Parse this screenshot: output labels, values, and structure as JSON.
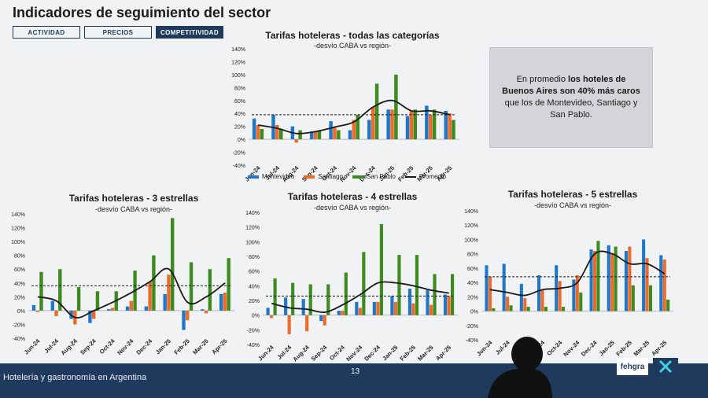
{
  "slide": {
    "title": "Indicadores de seguimiento del sector",
    "tabs": [
      {
        "label": "ACTIVIDAD",
        "active": false
      },
      {
        "label": "PRECIOS",
        "active": false
      },
      {
        "label": "COMPETITIVIDAD",
        "active": true
      }
    ],
    "callout": {
      "part1": "En promedio ",
      "bold": "los hoteles de Buenos Aires son 40% más caros",
      "part2": " que los de Montevideo, Santiago y San Pablo."
    },
    "footer_text": "Hotelería y gastronomía en Argentina",
    "page_number": "13",
    "logo_text": "fehgra"
  },
  "legend": [
    {
      "name": "Montevideo",
      "color": "#1f77c8"
    },
    {
      "name": "Santiago",
      "color": "#ec6a2a"
    },
    {
      "name": "San Pablo",
      "color": "#3d8a1e"
    },
    {
      "name": "Promedio",
      "color": "#1a1a1a"
    }
  ],
  "colors": {
    "montevideo": "#1f77c8",
    "santiago": "#ec6a2a",
    "san_pablo": "#3d8a1e",
    "promedio": "#1a1a1a",
    "brand": "#1e3a5c"
  },
  "chart_data": [
    {
      "id": "todas",
      "type": "bar",
      "title": "Tarifas hoteleras - todas las categorías",
      "subtitle": "-desvío CABA vs región-",
      "categories": [
        "Jun-24",
        "Jul-24",
        "Aug-24",
        "Sep-24",
        "Oct-24",
        "Nov-24",
        "Dec-24",
        "Jan-25",
        "Feb-25",
        "Mar-25",
        "Apr-25"
      ],
      "ylim": [
        -40,
        140
      ],
      "yticks": [
        -40,
        -20,
        0,
        20,
        40,
        60,
        80,
        100,
        120,
        140
      ],
      "ytick_labels": [
        "-40%",
        "-20%",
        "0%",
        "20%",
        "40%",
        "60%",
        "80%",
        "100%",
        "120%",
        "140%"
      ],
      "series": [
        {
          "name": "Montevideo",
          "values": [
            32,
            38,
            20,
            12,
            28,
            14,
            30,
            46,
            36,
            52,
            44
          ]
        },
        {
          "name": "Santiago",
          "values": [
            22,
            22,
            -5,
            12,
            18,
            30,
            50,
            46,
            44,
            38,
            40
          ]
        },
        {
          "name": "San Pablo",
          "values": [
            16,
            16,
            14,
            14,
            14,
            38,
            86,
            100,
            46,
            46,
            30
          ]
        },
        {
          "name": "Promedio",
          "values": [
            22,
            17,
            9,
            12,
            19,
            27,
            50,
            60,
            44,
            44,
            38
          ]
        }
      ],
      "reference_line": 38
    },
    {
      "id": "tres",
      "type": "bar",
      "title": "Tarifas hoteleras - 3 estrellas",
      "subtitle": "-desvío CABA vs región-",
      "categories": [
        "Jun-24",
        "Jul-24",
        "Aug-24",
        "Sep-24",
        "Oct-24",
        "Nov-24",
        "Dec-24",
        "Jan-25",
        "Feb-25",
        "Mar-25",
        "Apr-25"
      ],
      "ylim": [
        -40,
        140
      ],
      "yticks": [
        -40,
        -20,
        0,
        20,
        40,
        60,
        80,
        100,
        120,
        140
      ],
      "ytick_labels": [
        "-40%",
        "-20%",
        "0%",
        "20%",
        "40%",
        "60%",
        "80%",
        "100%",
        "120%",
        "140%"
      ],
      "series": [
        {
          "name": "Montevideo",
          "values": [
            8,
            14,
            -12,
            -18,
            2,
            6,
            6,
            24,
            -28,
            2,
            24
          ]
        },
        {
          "name": "Santiago",
          "values": [
            -2,
            -8,
            -20,
            -12,
            4,
            14,
            42,
            52,
            -14,
            -4,
            26
          ]
        },
        {
          "name": "San Pablo",
          "values": [
            56,
            60,
            34,
            28,
            28,
            58,
            80,
            134,
            70,
            60,
            76
          ]
        },
        {
          "name": "Promedio",
          "values": [
            20,
            14,
            -10,
            0,
            12,
            26,
            42,
            60,
            12,
            20,
            40
          ]
        }
      ],
      "reference_line": 36
    },
    {
      "id": "cuatro",
      "type": "bar",
      "title": "Tarifas hoteleras - 4 estrellas",
      "subtitle": "-desvío CABA vs región-",
      "categories": [
        "Jun-24",
        "Jul-24",
        "Aug-24",
        "Sep-24",
        "Oct-24",
        "Nov-24",
        "Dec-24",
        "Jan-25",
        "Feb-25",
        "Mar-25",
        "Apr-25"
      ],
      "ylim": [
        -40,
        140
      ],
      "yticks": [
        -40,
        -20,
        0,
        20,
        40,
        60,
        80,
        100,
        120,
        140
      ],
      "ytick_labels": [
        "-40%",
        "-20%",
        "0%",
        "20%",
        "40%",
        "60%",
        "80%",
        "100%",
        "120%",
        "140%"
      ],
      "series": [
        {
          "name": "Montevideo",
          "values": [
            10,
            24,
            22,
            -8,
            6,
            18,
            18,
            26,
            36,
            34,
            28
          ]
        },
        {
          "name": "Santiago",
          "values": [
            -4,
            -26,
            -22,
            -14,
            6,
            10,
            18,
            18,
            16,
            14,
            26
          ]
        },
        {
          "name": "San Pablo",
          "values": [
            50,
            44,
            42,
            42,
            58,
            86,
            124,
            82,
            82,
            56,
            56
          ]
        },
        {
          "name": "Promedio",
          "values": [
            16,
            10,
            8,
            4,
            14,
            28,
            44,
            44,
            40,
            34,
            30
          ]
        }
      ],
      "reference_line": 26
    },
    {
      "id": "cinco",
      "type": "bar",
      "title": "Tarifas hoteleras - 5 estrellas",
      "subtitle": "-desvío CABA vs región-",
      "categories": [
        "Jun-24",
        "Jul-24",
        "Aug-24",
        "Sep-24",
        "Oct-24",
        "Nov-24",
        "Dec-24",
        "Jan-25",
        "Feb-25",
        "Mar-25",
        "Apr-25"
      ],
      "ylim": [
        -40,
        140
      ],
      "yticks": [
        -40,
        -20,
        0,
        20,
        40,
        60,
        80,
        100,
        120,
        140
      ],
      "ytick_labels": [
        "-40%",
        "-20%",
        "0%",
        "20%",
        "40%",
        "60%",
        "80%",
        "100%",
        "120%",
        "140%"
      ],
      "series": [
        {
          "name": "Montevideo",
          "values": [
            64,
            66,
            38,
            50,
            64,
            44,
            86,
            92,
            84,
            100,
            78
          ]
        },
        {
          "name": "Santiago",
          "values": [
            48,
            20,
            18,
            30,
            42,
            50,
            84,
            80,
            90,
            74,
            72
          ]
        },
        {
          "name": "San Pablo",
          "values": [
            4,
            8,
            6,
            6,
            6,
            26,
            98,
            90,
            36,
            36,
            16
          ]
        },
        {
          "name": "Promedio",
          "values": [
            30,
            26,
            22,
            30,
            32,
            40,
            80,
            80,
            66,
            66,
            52
          ]
        }
      ],
      "reference_line": 48
    }
  ]
}
